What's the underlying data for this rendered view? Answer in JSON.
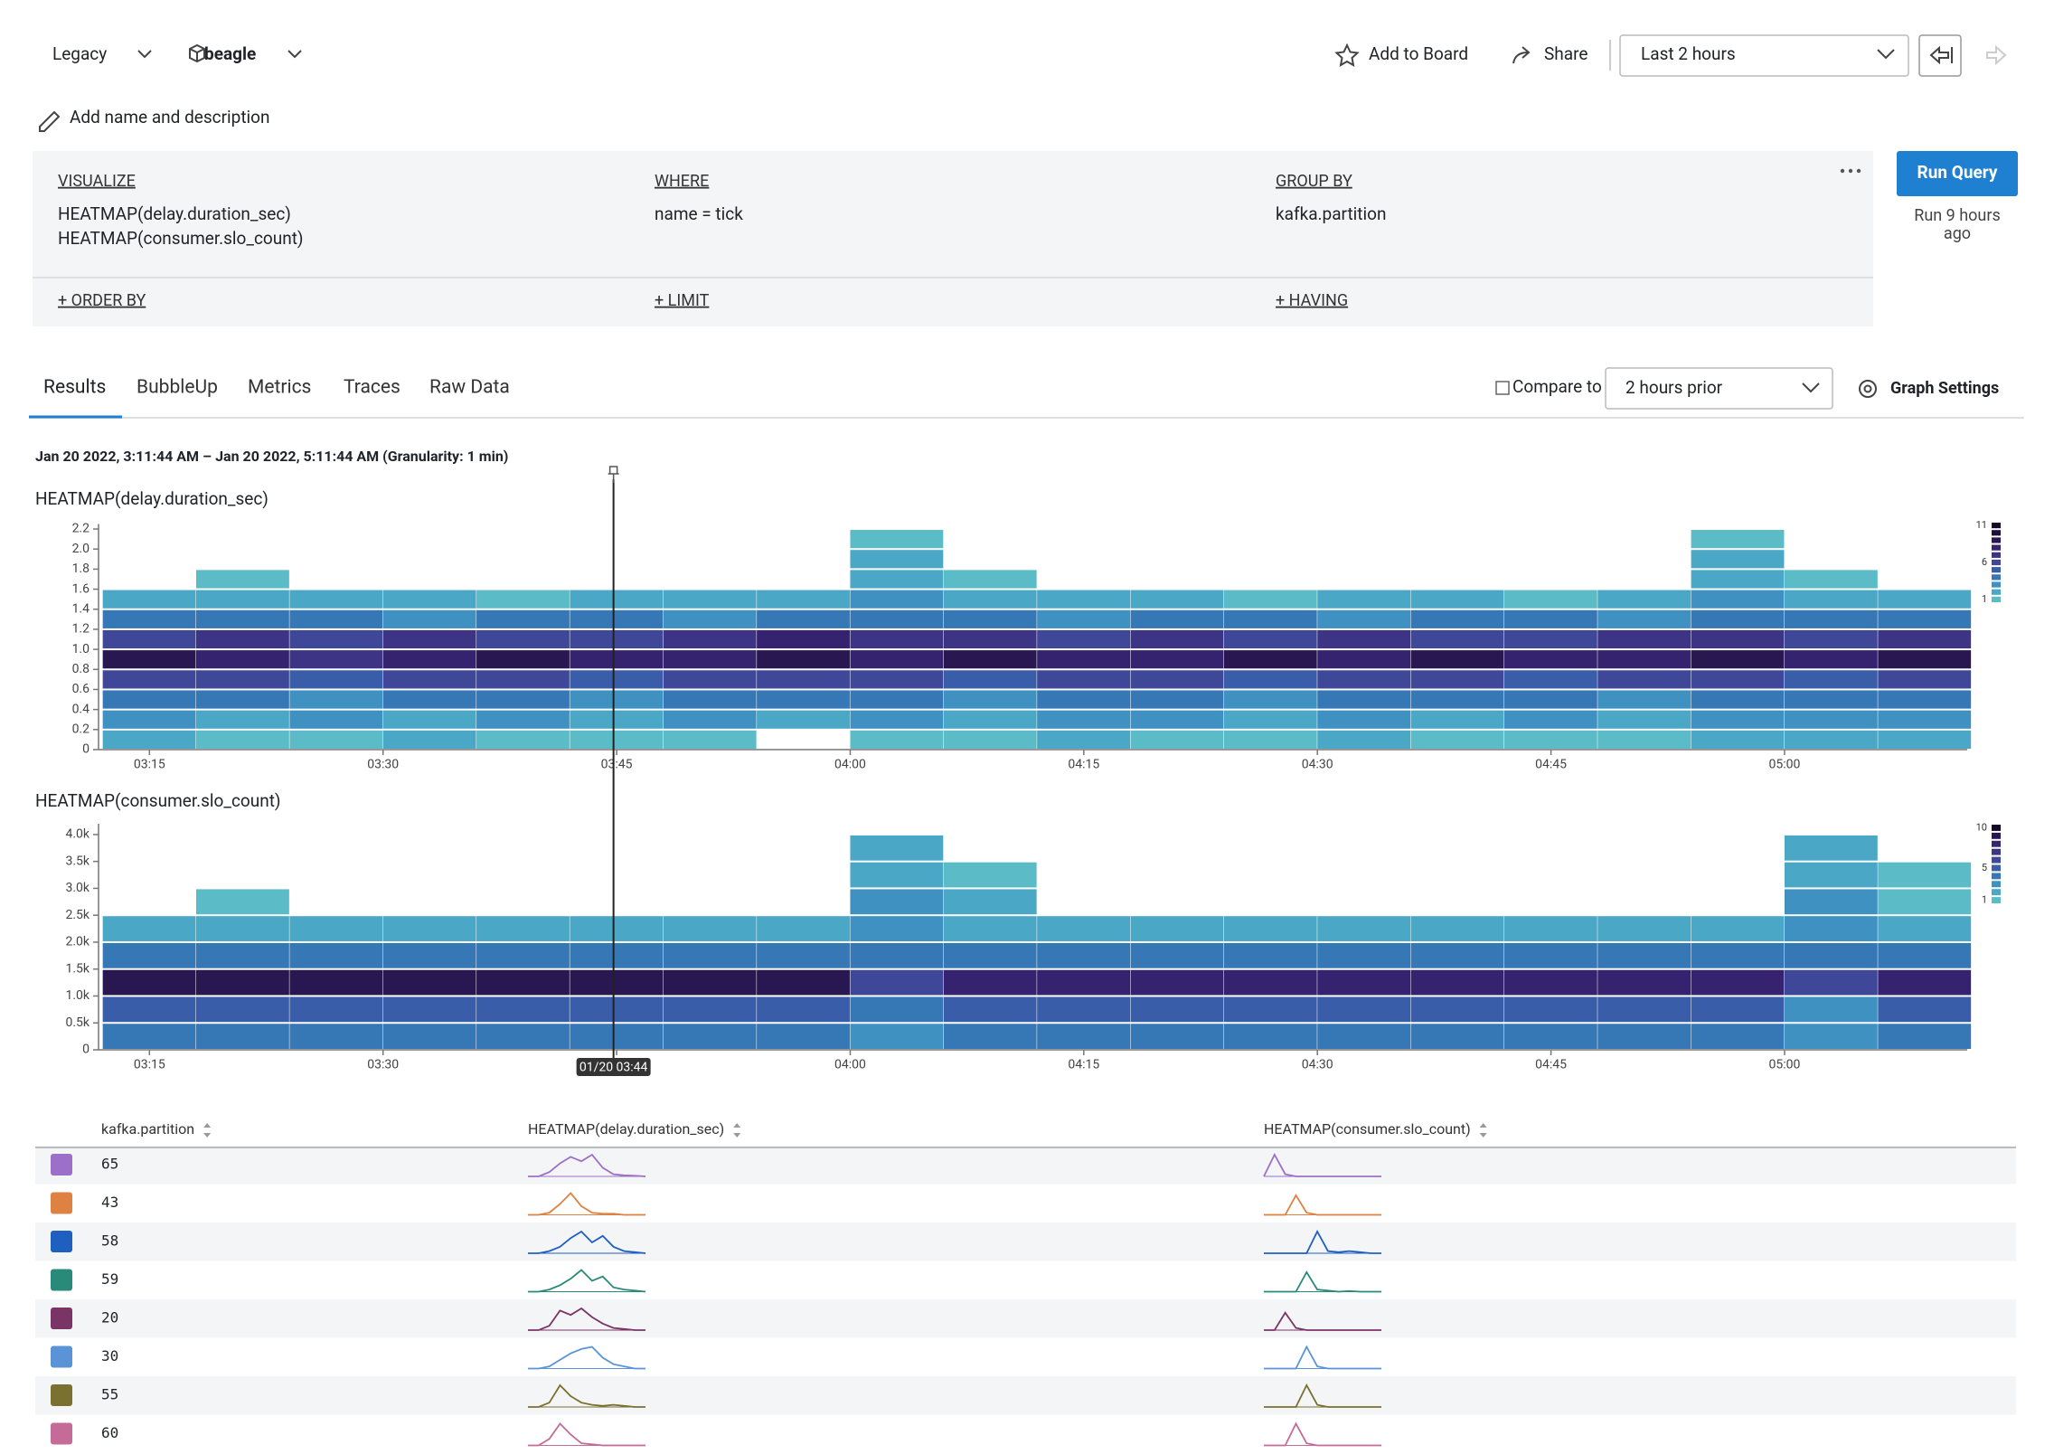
{
  "header": {
    "dataset_mode": "Legacy",
    "dataset": "beagle",
    "add_to_board": "Add to Board",
    "share": "Share",
    "time_range": "Last 2 hours",
    "add_name": "Add name and description"
  },
  "query": {
    "visualize_label": "VISUALIZE",
    "visualize": [
      "HEATMAP(delay.duration_sec)",
      "HEATMAP(consumer.slo_count)"
    ],
    "where_label": "WHERE",
    "where": "name = tick",
    "group_by_label": "GROUP BY",
    "group_by": "kafka.partition",
    "order_by": "+ ORDER BY",
    "limit": "+ LIMIT",
    "having": "+ HAVING",
    "run": "Run Query",
    "run_status": [
      "Run 9 hours",
      "ago"
    ]
  },
  "tabs": [
    "Results",
    "BubbleUp",
    "Metrics",
    "Traces",
    "Raw Data"
  ],
  "compare": {
    "label": "Compare to",
    "value": "2 hours prior"
  },
  "graph_settings": "Graph Settings",
  "range_text": "Jan 20 2022, 3:11:44 AM – Jan 20 2022, 5:11:44 AM (Granularity: 1 min)",
  "cursor": {
    "x": 224.8,
    "label": "01/20 03:44"
  },
  "chart_data": [
    {
      "type": "heatmap",
      "title": "HEATMAP(delay.duration_sec)",
      "xlim": [
        191.73,
        311.73
      ],
      "xticks": [
        {
          "value": 195,
          "label": "03:15"
        },
        {
          "value": 210,
          "label": "03:30"
        },
        {
          "value": 225,
          "label": "03:45"
        },
        {
          "value": 240,
          "label": "04:00"
        },
        {
          "value": 255,
          "label": "04:15"
        },
        {
          "value": 270,
          "label": "04:30"
        },
        {
          "value": 285,
          "label": "04:45"
        },
        {
          "value": 300,
          "label": "05:00"
        }
      ],
      "ylim": [
        0,
        2.25
      ],
      "yticks": [
        0,
        0.2,
        0.4,
        0.6,
        0.8,
        {
          "value": 1,
          "label": "1.0"
        },
        1.2,
        1.4,
        1.6,
        1.8,
        {
          "value": 2,
          "label": "2.0"
        },
        2.2
      ],
      "x_bins": [
        192,
        198,
        204,
        210,
        216,
        222,
        228,
        234,
        240,
        246,
        252,
        258,
        264,
        270,
        276,
        282,
        288,
        294,
        300,
        306,
        312
      ],
      "y_bins": [
        0,
        0.2,
        0.4,
        0.6,
        0.8,
        1.0,
        1.2,
        1.4,
        1.6,
        1.8,
        2.0,
        2.2
      ],
      "values": [
        [
          2,
          1,
          1,
          2,
          1,
          1,
          1,
          0,
          1,
          1,
          2,
          1,
          1,
          2,
          1,
          1,
          1,
          2,
          2,
          2
        ],
        [
          3,
          2,
          3,
          2,
          3,
          2,
          3,
          2,
          3,
          2,
          3,
          3,
          2,
          3,
          2,
          3,
          2,
          3,
          3,
          3
        ],
        [
          4,
          4,
          3,
          4,
          4,
          3,
          4,
          4,
          4,
          3,
          4,
          4,
          3,
          4,
          4,
          4,
          3,
          4,
          4,
          4
        ],
        [
          6,
          6,
          5,
          6,
          6,
          5,
          6,
          6,
          6,
          5,
          6,
          6,
          5,
          6,
          6,
          5,
          6,
          6,
          5,
          6
        ],
        [
          9,
          8,
          7,
          8,
          9,
          8,
          8,
          9,
          8,
          9,
          8,
          8,
          9,
          8,
          9,
          8,
          8,
          9,
          8,
          9
        ],
        [
          6,
          7,
          6,
          7,
          6,
          6,
          7,
          8,
          7,
          7,
          6,
          7,
          6,
          7,
          6,
          6,
          7,
          7,
          6,
          7
        ],
        [
          4,
          4,
          4,
          3,
          4,
          4,
          3,
          4,
          4,
          4,
          3,
          4,
          4,
          3,
          4,
          4,
          3,
          4,
          4,
          4
        ],
        [
          2,
          2,
          2,
          2,
          1,
          2,
          2,
          2,
          3,
          2,
          2,
          2,
          1,
          2,
          2,
          1,
          2,
          3,
          2,
          2
        ],
        [
          0,
          1,
          0,
          0,
          0,
          0,
          0,
          0,
          2,
          1,
          0,
          0,
          0,
          0,
          0,
          0,
          0,
          2,
          1,
          0
        ],
        [
          0,
          0,
          0,
          0,
          0,
          0,
          0,
          0,
          2,
          0,
          0,
          0,
          0,
          0,
          0,
          0,
          0,
          2,
          0,
          0
        ],
        [
          0,
          0,
          0,
          0,
          0,
          0,
          0,
          0,
          1,
          0,
          0,
          0,
          0,
          0,
          0,
          0,
          0,
          1,
          0,
          0
        ]
      ],
      "colors": [
        "#5bbcc7",
        "#4aa8c6",
        "#3e91c0",
        "#3677b6",
        "#395da8",
        "#3e4798",
        "#3d3486",
        "#352370",
        "#291752",
        "#1c0f3a",
        "#120a26"
      ],
      "legend_ticks": [
        11,
        6,
        1
      ]
    },
    {
      "type": "heatmap",
      "title": "HEATMAP(consumer.slo_count)",
      "xlim": [
        191.73,
        311.73
      ],
      "xticks": [
        {
          "value": 195,
          "label": "03:15"
        },
        {
          "value": 210,
          "label": "03:30"
        },
        {
          "value": 225,
          "label": "03:45"
        },
        {
          "value": 240,
          "label": "04:00"
        },
        {
          "value": 255,
          "label": "04:15"
        },
        {
          "value": 270,
          "label": "04:30"
        },
        {
          "value": 285,
          "label": "04:45"
        },
        {
          "value": 300,
          "label": "05:00"
        }
      ],
      "ylim": [
        0,
        4200
      ],
      "yticks": [
        0,
        {
          "value": 500,
          "label": "0.5k"
        },
        {
          "value": 1000,
          "label": "1.0k"
        },
        {
          "value": 1500,
          "label": "1.5k"
        },
        {
          "value": 2000,
          "label": "2.0k"
        },
        {
          "value": 2500,
          "label": "2.5k"
        },
        {
          "value": 3000,
          "label": "3.0k"
        },
        {
          "value": 3500,
          "label": "3.5k"
        },
        {
          "value": 4000,
          "label": "4.0k"
        }
      ],
      "x_bins": [
        192,
        198,
        204,
        210,
        216,
        222,
        228,
        234,
        240,
        246,
        252,
        258,
        264,
        270,
        276,
        282,
        288,
        294,
        300,
        306,
        312
      ],
      "y_bins": [
        0,
        500,
        1000,
        1500,
        2000,
        2500,
        3000,
        3500,
        4000
      ],
      "values": [
        [
          4,
          4,
          4,
          4,
          4,
          4,
          4,
          4,
          3,
          4,
          4,
          4,
          4,
          4,
          4,
          4,
          4,
          4,
          3,
          4
        ],
        [
          5,
          5,
          5,
          5,
          5,
          5,
          5,
          5,
          4,
          5,
          5,
          5,
          5,
          5,
          5,
          5,
          5,
          5,
          3,
          5
        ],
        [
          9,
          9,
          9,
          9,
          9,
          9,
          9,
          9,
          6,
          8,
          8,
          8,
          8,
          8,
          8,
          8,
          8,
          8,
          6,
          8
        ],
        [
          4,
          4,
          4,
          4,
          4,
          4,
          4,
          4,
          4,
          4,
          4,
          4,
          4,
          4,
          4,
          4,
          4,
          4,
          4,
          4
        ],
        [
          2,
          2,
          2,
          2,
          2,
          2,
          2,
          2,
          3,
          2,
          2,
          2,
          2,
          2,
          2,
          2,
          2,
          2,
          3,
          2
        ],
        [
          0,
          1,
          0,
          0,
          0,
          0,
          0,
          0,
          3,
          2,
          0,
          0,
          0,
          0,
          0,
          0,
          0,
          0,
          3,
          1
        ],
        [
          0,
          0,
          0,
          0,
          0,
          0,
          0,
          0,
          2,
          1,
          0,
          0,
          0,
          0,
          0,
          0,
          0,
          0,
          2,
          1
        ],
        [
          0,
          0,
          0,
          0,
          0,
          0,
          0,
          0,
          2,
          0,
          0,
          0,
          0,
          0,
          0,
          0,
          0,
          0,
          2,
          0
        ]
      ],
      "colors": [
        "#5bbcc7",
        "#4aa8c6",
        "#3e91c0",
        "#3677b6",
        "#395da8",
        "#3e4798",
        "#3d3486",
        "#352370",
        "#291752",
        "#120a26"
      ],
      "legend_ticks": [
        10,
        5,
        1
      ]
    }
  ],
  "table": {
    "columns": [
      "kafka.partition",
      "HEATMAP(delay.duration_sec)",
      "HEATMAP(consumer.slo_count)"
    ],
    "rows": [
      {
        "partition": "65",
        "color": "#9c6fc8",
        "delay": [
          0,
          0,
          2,
          6,
          9,
          7,
          10,
          4,
          1,
          0.5,
          0.3,
          0
        ],
        "slo": [
          0,
          10,
          1,
          0,
          0,
          0,
          0,
          0,
          0,
          0,
          0,
          0
        ]
      },
      {
        "partition": "43",
        "color": "#dd8243",
        "delay": [
          0,
          0,
          1,
          5,
          10,
          4,
          1,
          0.5,
          0.5,
          0,
          0,
          0
        ],
        "slo": [
          0,
          0,
          0,
          9,
          1,
          0,
          0,
          0,
          0,
          0,
          0,
          0
        ]
      },
      {
        "partition": "58",
        "color": "#1f5fbf",
        "delay": [
          0,
          0,
          1,
          3,
          7,
          10,
          5,
          8,
          3,
          1,
          0.5,
          0
        ],
        "slo": [
          0,
          0,
          0,
          0,
          0,
          10,
          1,
          0.5,
          1,
          0.5,
          0,
          0
        ]
      },
      {
        "partition": "59",
        "color": "#2a8a7a",
        "delay": [
          0,
          0,
          1,
          3,
          6,
          10,
          5,
          7,
          2,
          1,
          0.5,
          0
        ],
        "slo": [
          0,
          0,
          0,
          0,
          9,
          1,
          0.5,
          0,
          0.3,
          0,
          0,
          0
        ]
      },
      {
        "partition": "20",
        "color": "#7a3566",
        "delay": [
          0,
          0,
          2,
          9,
          7,
          10,
          6,
          3,
          1,
          0.5,
          0,
          0
        ],
        "slo": [
          0,
          0,
          8,
          1,
          0,
          0,
          0,
          0,
          0,
          0,
          0,
          0
        ]
      },
      {
        "partition": "30",
        "color": "#5b94d6",
        "delay": [
          0,
          0,
          1,
          4,
          7,
          9,
          10,
          5,
          2,
          1,
          0,
          0
        ],
        "slo": [
          0,
          0,
          0,
          0,
          10,
          1,
          0,
          0,
          0,
          0,
          0,
          0
        ]
      },
      {
        "partition": "55",
        "color": "#7a7030",
        "delay": [
          0,
          0,
          2,
          10,
          5,
          2,
          1,
          0.5,
          1,
          0.5,
          0,
          0
        ],
        "slo": [
          0,
          0,
          0,
          0,
          10,
          1,
          0,
          0,
          0,
          0,
          0,
          0
        ]
      },
      {
        "partition": "60",
        "color": "#c46b97",
        "delay": [
          0,
          0,
          3,
          10,
          5,
          1,
          0.5,
          0,
          0,
          0,
          0,
          0
        ],
        "slo": [
          0,
          0,
          0,
          10,
          1,
          0,
          0,
          0,
          0,
          0,
          0,
          0
        ]
      }
    ]
  }
}
